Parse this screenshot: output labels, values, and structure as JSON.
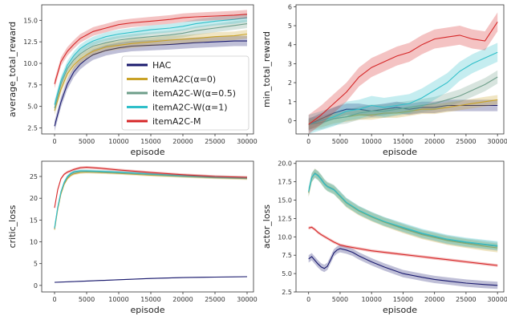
{
  "chart_data": [
    {
      "type": "line",
      "xlabel": "episode",
      "ylabel": "average_total_reward",
      "xlim": [
        -2000,
        31000
      ],
      "ylim": [
        1.8,
        16.8
      ],
      "xticks": [
        0,
        5000,
        10000,
        15000,
        20000,
        25000,
        30000
      ],
      "yticks": [
        2.5,
        5.0,
        7.5,
        10.0,
        12.5,
        15.0
      ],
      "ytick_labels": [
        "2.5",
        "5.0",
        "7.5",
        "10.0",
        "12.5",
        "15.0"
      ],
      "legend": "center-right",
      "series": [
        {
          "name": "HAC",
          "color": "#1a1a6e",
          "x": [
            0,
            1000,
            2000,
            3000,
            4000,
            5000,
            6000,
            8000,
            10000,
            12000,
            15000,
            18000,
            20000,
            22000,
            25000,
            28000,
            30000
          ],
          "y": [
            2.7,
            5.5,
            7.6,
            9.0,
            9.9,
            10.5,
            11.0,
            11.5,
            11.8,
            12.0,
            12.1,
            12.2,
            12.3,
            12.4,
            12.5,
            12.6,
            12.6
          ],
          "band": 0.6
        },
        {
          "name": "itemA2C(α=0)",
          "color": "#c9a227",
          "x": [
            0,
            1000,
            2000,
            3000,
            4000,
            5000,
            6000,
            8000,
            10000,
            12000,
            15000,
            18000,
            20000,
            22000,
            25000,
            28000,
            30000
          ],
          "y": [
            4.5,
            7.0,
            8.8,
            9.8,
            10.5,
            11.0,
            11.4,
            11.9,
            12.1,
            12.3,
            12.5,
            12.7,
            12.8,
            12.9,
            13.1,
            13.2,
            13.4
          ],
          "band": 0.5
        },
        {
          "name": "itemA2C-W(α=0.5)",
          "color": "#6e9e8a",
          "x": [
            0,
            1000,
            2000,
            3000,
            4000,
            5000,
            6000,
            8000,
            10000,
            12000,
            15000,
            18000,
            20000,
            22000,
            25000,
            28000,
            30000
          ],
          "y": [
            4.8,
            7.6,
            9.4,
            10.4,
            11.1,
            11.6,
            12.0,
            12.4,
            12.7,
            12.9,
            13.1,
            13.3,
            13.5,
            13.8,
            14.1,
            14.4,
            14.6
          ],
          "band": 0.5
        },
        {
          "name": "itemA2C-W(α=1)",
          "color": "#2fbfc9",
          "x": [
            0,
            1000,
            2000,
            3000,
            4000,
            5000,
            6000,
            8000,
            10000,
            12000,
            15000,
            18000,
            20000,
            22000,
            25000,
            28000,
            30000
          ],
          "y": [
            5.2,
            8.0,
            9.8,
            10.9,
            11.7,
            12.2,
            12.6,
            13.1,
            13.4,
            13.6,
            13.9,
            14.1,
            14.3,
            14.6,
            14.9,
            15.1,
            15.3
          ],
          "band": 0.5
        },
        {
          "name": "itemA2C-M",
          "color": "#d62728",
          "x": [
            0,
            1000,
            2000,
            3000,
            4000,
            5000,
            6000,
            8000,
            10000,
            12000,
            15000,
            18000,
            20000,
            22000,
            25000,
            28000,
            30000
          ],
          "y": [
            7.6,
            10.2,
            11.4,
            12.2,
            12.9,
            13.3,
            13.7,
            14.1,
            14.5,
            14.7,
            14.9,
            15.1,
            15.3,
            15.4,
            15.5,
            15.6,
            15.7
          ],
          "band": 0.5
        }
      ]
    },
    {
      "type": "line",
      "xlabel": "episode",
      "ylabel": "min_total_reward",
      "xlim": [
        -2000,
        31000
      ],
      "ylim": [
        -0.7,
        6.1
      ],
      "xticks": [
        0,
        5000,
        10000,
        15000,
        20000,
        25000,
        30000
      ],
      "yticks": [
        0,
        1,
        2,
        3,
        4,
        5,
        6
      ],
      "ytick_labels": [
        "0",
        "1",
        "2",
        "3",
        "4",
        "5",
        "6"
      ],
      "series": [
        {
          "name": "HAC",
          "color": "#1a1a6e",
          "x": [
            0,
            2000,
            4000,
            6000,
            8000,
            10000,
            12000,
            14000,
            16000,
            18000,
            20000,
            22000,
            24000,
            26000,
            28000,
            30000
          ],
          "y": [
            -0.2,
            0.1,
            0.4,
            0.6,
            0.6,
            0.5,
            0.6,
            0.7,
            0.6,
            0.7,
            0.7,
            0.8,
            0.8,
            0.8,
            0.8,
            0.8
          ],
          "band": 0.3
        },
        {
          "name": "itemA2C(α=0)",
          "color": "#c9a227",
          "x": [
            0,
            2000,
            4000,
            6000,
            8000,
            10000,
            12000,
            14000,
            16000,
            18000,
            20000,
            22000,
            24000,
            26000,
            28000,
            30000
          ],
          "y": [
            -0.2,
            -0.1,
            0.1,
            0.2,
            0.3,
            0.3,
            0.4,
            0.4,
            0.5,
            0.6,
            0.6,
            0.7,
            0.8,
            0.9,
            1.0,
            1.1
          ],
          "band": 0.25
        },
        {
          "name": "itemA2C-W(α=0.5)",
          "color": "#6e9e8a",
          "x": [
            0,
            2000,
            4000,
            6000,
            8000,
            10000,
            12000,
            14000,
            16000,
            18000,
            20000,
            22000,
            24000,
            26000,
            28000,
            30000
          ],
          "y": [
            -0.2,
            -0.1,
            0.1,
            0.2,
            0.4,
            0.5,
            0.5,
            0.6,
            0.7,
            0.8,
            0.9,
            1.1,
            1.3,
            1.6,
            1.9,
            2.3
          ],
          "band": 0.35
        },
        {
          "name": "itemA2C-W(α=1)",
          "color": "#2fbfc9",
          "x": [
            0,
            2000,
            4000,
            6000,
            8000,
            10000,
            12000,
            14000,
            16000,
            18000,
            20000,
            22000,
            24000,
            26000,
            28000,
            30000
          ],
          "y": [
            -0.2,
            0.0,
            0.2,
            0.5,
            0.6,
            0.8,
            0.7,
            0.8,
            0.9,
            1.2,
            1.6,
            2.0,
            2.6,
            3.0,
            3.3,
            3.6
          ],
          "band": 0.5
        },
        {
          "name": "itemA2C-M",
          "color": "#d62728",
          "x": [
            0,
            2000,
            4000,
            6000,
            8000,
            10000,
            12000,
            14000,
            16000,
            18000,
            20000,
            22000,
            24000,
            26000,
            28000,
            30000
          ],
          "y": [
            -0.2,
            0.3,
            0.9,
            1.5,
            2.3,
            2.8,
            3.1,
            3.4,
            3.6,
            4.0,
            4.3,
            4.4,
            4.5,
            4.3,
            4.2,
            5.2
          ],
          "band": 0.5
        }
      ]
    },
    {
      "type": "line",
      "xlabel": "episode",
      "ylabel": "critic_loss",
      "xlim": [
        -2000,
        31000
      ],
      "ylim": [
        -1.5,
        28.5
      ],
      "xticks": [
        0,
        5000,
        10000,
        15000,
        20000,
        25000,
        30000
      ],
      "yticks": [
        0,
        5,
        10,
        15,
        20,
        25
      ],
      "ytick_labels": [
        "0",
        "5",
        "10",
        "15",
        "20",
        "25"
      ],
      "series": [
        {
          "name": "HAC",
          "color": "#1a1a6e",
          "x": [
            0,
            5000,
            10000,
            15000,
            20000,
            25000,
            30000
          ],
          "y": [
            0.7,
            1.0,
            1.3,
            1.6,
            1.8,
            1.9,
            2.0
          ],
          "band": 0.1
        },
        {
          "name": "itemA2C(α=0)",
          "color": "#c9a227",
          "x": [
            0,
            500,
            1000,
            1500,
            2000,
            2500,
            3000,
            4000,
            5000,
            7000,
            10000,
            15000,
            20000,
            25000,
            30000
          ],
          "y": [
            12.8,
            17.5,
            21.0,
            23.2,
            24.5,
            25.2,
            25.6,
            25.9,
            26.0,
            25.9,
            25.7,
            25.3,
            25.0,
            24.7,
            24.5
          ],
          "band": 0.3
        },
        {
          "name": "itemA2C-W(α=0.5)",
          "color": "#6e9e8a",
          "x": [
            0,
            500,
            1000,
            1500,
            2000,
            2500,
            3000,
            4000,
            5000,
            7000,
            10000,
            15000,
            20000,
            25000,
            30000
          ],
          "y": [
            13.0,
            17.8,
            21.3,
            23.5,
            24.8,
            25.5,
            25.9,
            26.2,
            26.2,
            26.1,
            25.9,
            25.5,
            25.1,
            24.8,
            24.6
          ],
          "band": 0.3
        },
        {
          "name": "itemA2C-W(α=1)",
          "color": "#2fbfc9",
          "x": [
            0,
            500,
            1000,
            1500,
            2000,
            2500,
            3000,
            4000,
            5000,
            7000,
            10000,
            15000,
            20000,
            25000,
            30000
          ],
          "y": [
            13.2,
            18.0,
            21.5,
            23.7,
            25.0,
            25.7,
            26.1,
            26.3,
            26.3,
            26.2,
            26.0,
            25.6,
            25.2,
            24.9,
            24.7
          ],
          "band": 0.3
        },
        {
          "name": "itemA2C-M",
          "color": "#d62728",
          "x": [
            0,
            500,
            1000,
            1500,
            2000,
            2500,
            3000,
            4000,
            5000,
            7000,
            10000,
            15000,
            20000,
            25000,
            30000
          ],
          "y": [
            17.8,
            22.0,
            24.5,
            25.5,
            26.0,
            26.3,
            26.6,
            27.0,
            27.1,
            26.9,
            26.5,
            25.9,
            25.4,
            25.0,
            24.8
          ],
          "band": 0.3
        }
      ]
    },
    {
      "type": "line",
      "xlabel": "episode",
      "ylabel": "actor_loss",
      "xlim": [
        -2000,
        31000
      ],
      "ylim": [
        2.5,
        20.3
      ],
      "xticks": [
        0,
        5000,
        10000,
        15000,
        20000,
        25000,
        30000
      ],
      "yticks": [
        2.5,
        5.0,
        7.5,
        10.0,
        12.5,
        15.0,
        17.5,
        20.0
      ],
      "ytick_labels": [
        "2.5",
        "5.0",
        "7.5",
        "10.0",
        "12.5",
        "15.0",
        "17.5",
        "20.0"
      ],
      "series": [
        {
          "name": "HAC",
          "color": "#1a1a6e",
          "x": [
            0,
            500,
            1000,
            1500,
            2000,
            2500,
            3000,
            3500,
            4000,
            4500,
            5000,
            6000,
            7000,
            8000,
            10000,
            12000,
            15000,
            18000,
            20000,
            22000,
            25000,
            28000,
            30000
          ],
          "y": [
            7.0,
            7.3,
            6.8,
            6.3,
            5.9,
            5.7,
            6.0,
            6.9,
            7.8,
            8.2,
            8.4,
            8.2,
            7.9,
            7.4,
            6.6,
            5.9,
            5.0,
            4.5,
            4.2,
            4.0,
            3.7,
            3.5,
            3.4
          ],
          "band": 0.5
        },
        {
          "name": "itemA2C(α=0)",
          "color": "#c9a227",
          "x": [
            0,
            500,
            1000,
            1500,
            2000,
            2500,
            3000,
            4000,
            5000,
            6000,
            8000,
            10000,
            12000,
            15000,
            18000,
            20000,
            22000,
            25000,
            28000,
            30000
          ],
          "y": [
            16.0,
            18.0,
            18.7,
            18.3,
            17.8,
            17.2,
            16.8,
            16.4,
            15.5,
            14.6,
            13.5,
            12.7,
            12.0,
            11.1,
            10.3,
            9.9,
            9.5,
            9.1,
            8.7,
            8.5
          ],
          "band": 0.6
        },
        {
          "name": "itemA2C-W(α=0.5)",
          "color": "#6e9e8a",
          "x": [
            0,
            500,
            1000,
            1500,
            2000,
            2500,
            3000,
            4000,
            5000,
            6000,
            8000,
            10000,
            12000,
            15000,
            18000,
            20000,
            22000,
            25000,
            28000,
            30000
          ],
          "y": [
            16.1,
            18.1,
            18.7,
            18.4,
            17.9,
            17.3,
            16.9,
            16.5,
            15.6,
            14.7,
            13.6,
            12.8,
            12.1,
            11.2,
            10.4,
            10.0,
            9.6,
            9.2,
            8.9,
            8.7
          ],
          "band": 0.6
        },
        {
          "name": "itemA2C-W(α=1)",
          "color": "#2fbfc9",
          "x": [
            0,
            500,
            1000,
            1500,
            2000,
            2500,
            3000,
            4000,
            5000,
            6000,
            8000,
            10000,
            12000,
            15000,
            18000,
            20000,
            22000,
            25000,
            28000,
            30000
          ],
          "y": [
            16.2,
            18.1,
            18.6,
            18.3,
            17.8,
            17.2,
            16.8,
            16.4,
            15.6,
            14.7,
            13.6,
            12.8,
            12.1,
            11.3,
            10.5,
            10.1,
            9.7,
            9.3,
            9.0,
            8.8
          ],
          "band": 0.6
        },
        {
          "name": "itemA2C-M",
          "color": "#d62728",
          "x": [
            0,
            500,
            1000,
            1500,
            2000,
            3000,
            4000,
            5000,
            6000,
            8000,
            10000,
            12000,
            15000,
            18000,
            20000,
            22000,
            25000,
            28000,
            30000
          ],
          "y": [
            11.2,
            11.3,
            11.0,
            10.6,
            10.3,
            9.8,
            9.3,
            8.9,
            8.7,
            8.4,
            8.1,
            7.9,
            7.6,
            7.3,
            7.1,
            6.9,
            6.6,
            6.3,
            6.1
          ],
          "band": 0.2
        }
      ]
    }
  ]
}
